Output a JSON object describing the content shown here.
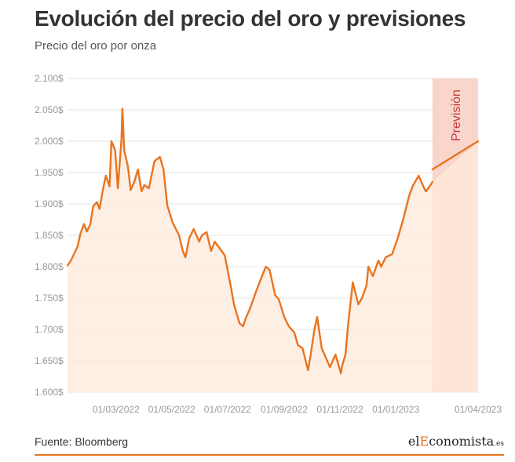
{
  "header": {
    "title": "Evolución del precio del oro y previsiones",
    "subtitle": "Precio del oro por onza"
  },
  "footer": {
    "source": "Fuente: Bloomberg",
    "logo": {
      "part1": "el",
      "part2": "E",
      "part3": "conomista",
      "part4": ".es"
    }
  },
  "colors": {
    "line": "#e8741f",
    "area": "#fde9dc",
    "forecast_band": "#f9d5cc",
    "forecast_text": "#c43c3c",
    "grid": "#e6e6e6",
    "accent": "#e8741f"
  },
  "chart_data": {
    "type": "area",
    "ylim": [
      1600,
      2100
    ],
    "yticks": [
      1600,
      1650,
      1700,
      1750,
      1800,
      1850,
      1900,
      1950,
      2000,
      2050,
      2100
    ],
    "ytick_labels": [
      "1.600$",
      "1.650$",
      "1.700$",
      "1.750$",
      "1.800$",
      "1.850$",
      "1.900$",
      "1.950$",
      "2.000$",
      "2.050$",
      "2.100$"
    ],
    "xlim": [
      "2022-01-07",
      "2023-04-01"
    ],
    "xticks": [
      "2022-03-01",
      "2022-05-01",
      "2022-07-01",
      "2022-09-01",
      "2022-11-01",
      "2023-01-01",
      "2023-04-01"
    ],
    "xtick_labels": [
      "01/03/2022",
      "01/05/2022",
      "01/07/2022",
      "01/09/2022",
      "01/11/2022",
      "01/01/2023",
      "01/04/2023"
    ],
    "grid": true,
    "forecast_region": {
      "start": "2023-02-10",
      "end": "2023-04-01",
      "label": "Previsión"
    },
    "series": [
      {
        "x": [
          "2022-01-07",
          "2022-01-10",
          "2022-01-14",
          "2022-01-18",
          "2022-01-21",
          "2022-01-25",
          "2022-01-28",
          "2022-02-01",
          "2022-02-04",
          "2022-02-08",
          "2022-02-11",
          "2022-02-15",
          "2022-02-18",
          "2022-02-22",
          "2022-02-24",
          "2022-02-28",
          "2022-03-03",
          "2022-03-07",
          "2022-03-08",
          "2022-03-10",
          "2022-03-14",
          "2022-03-17",
          "2022-03-21",
          "2022-03-25",
          "2022-03-29",
          "2022-04-01",
          "2022-04-06",
          "2022-04-12",
          "2022-04-18",
          "2022-04-22",
          "2022-04-26",
          "2022-05-02",
          "2022-05-09",
          "2022-05-13",
          "2022-05-16",
          "2022-05-20",
          "2022-05-25",
          "2022-05-31",
          "2022-06-03",
          "2022-06-08",
          "2022-06-13",
          "2022-06-17",
          "2022-06-22",
          "2022-06-28",
          "2022-07-05",
          "2022-07-08",
          "2022-07-14",
          "2022-07-18",
          "2022-07-21",
          "2022-07-26",
          "2022-08-01",
          "2022-08-05",
          "2022-08-09",
          "2022-08-12",
          "2022-08-16",
          "2022-08-22",
          "2022-08-26",
          "2022-09-01",
          "2022-09-06",
          "2022-09-12",
          "2022-09-16",
          "2022-09-21",
          "2022-09-27",
          "2022-09-30",
          "2022-10-04",
          "2022-10-07",
          "2022-10-12",
          "2022-10-18",
          "2022-10-21",
          "2022-10-27",
          "2022-11-02",
          "2022-11-03",
          "2022-11-07",
          "2022-11-10",
          "2022-11-15",
          "2022-11-21",
          "2022-11-25",
          "2022-11-30",
          "2022-12-02",
          "2022-12-07",
          "2022-12-13",
          "2022-12-16",
          "2022-12-21",
          "2022-12-28",
          "2023-01-03",
          "2023-01-09",
          "2023-01-16",
          "2023-01-20",
          "2023-01-26",
          "2023-02-01",
          "2023-02-03",
          "2023-02-08",
          "2023-02-10"
        ],
        "values": [
          1802,
          1808,
          1820,
          1832,
          1852,
          1868,
          1856,
          1868,
          1896,
          1903,
          1892,
          1925,
          1945,
          1928,
          2000,
          1986,
          1925,
          2002,
          2052,
          1985,
          1960,
          1922,
          1935,
          1955,
          1920,
          1930,
          1925,
          1968,
          1975,
          1955,
          1898,
          1870,
          1850,
          1825,
          1815,
          1845,
          1860,
          1840,
          1850,
          1855,
          1825,
          1840,
          1830,
          1818,
          1765,
          1740,
          1710,
          1705,
          1718,
          1735,
          1760,
          1775,
          1790,
          1800,
          1795,
          1755,
          1748,
          1720,
          1705,
          1695,
          1675,
          1670,
          1635,
          1660,
          1700,
          1720,
          1670,
          1650,
          1640,
          1660,
          1630,
          1640,
          1660,
          1710,
          1775,
          1740,
          1750,
          1770,
          1800,
          1785,
          1810,
          1800,
          1815,
          1820,
          1845,
          1875,
          1915,
          1930,
          1945,
          1925,
          1920,
          1930,
          1935
        ]
      },
      {
        "x": [
          "2023-02-10",
          "2023-04-01"
        ],
        "values": [
          1955,
          2000
        ]
      }
    ]
  }
}
